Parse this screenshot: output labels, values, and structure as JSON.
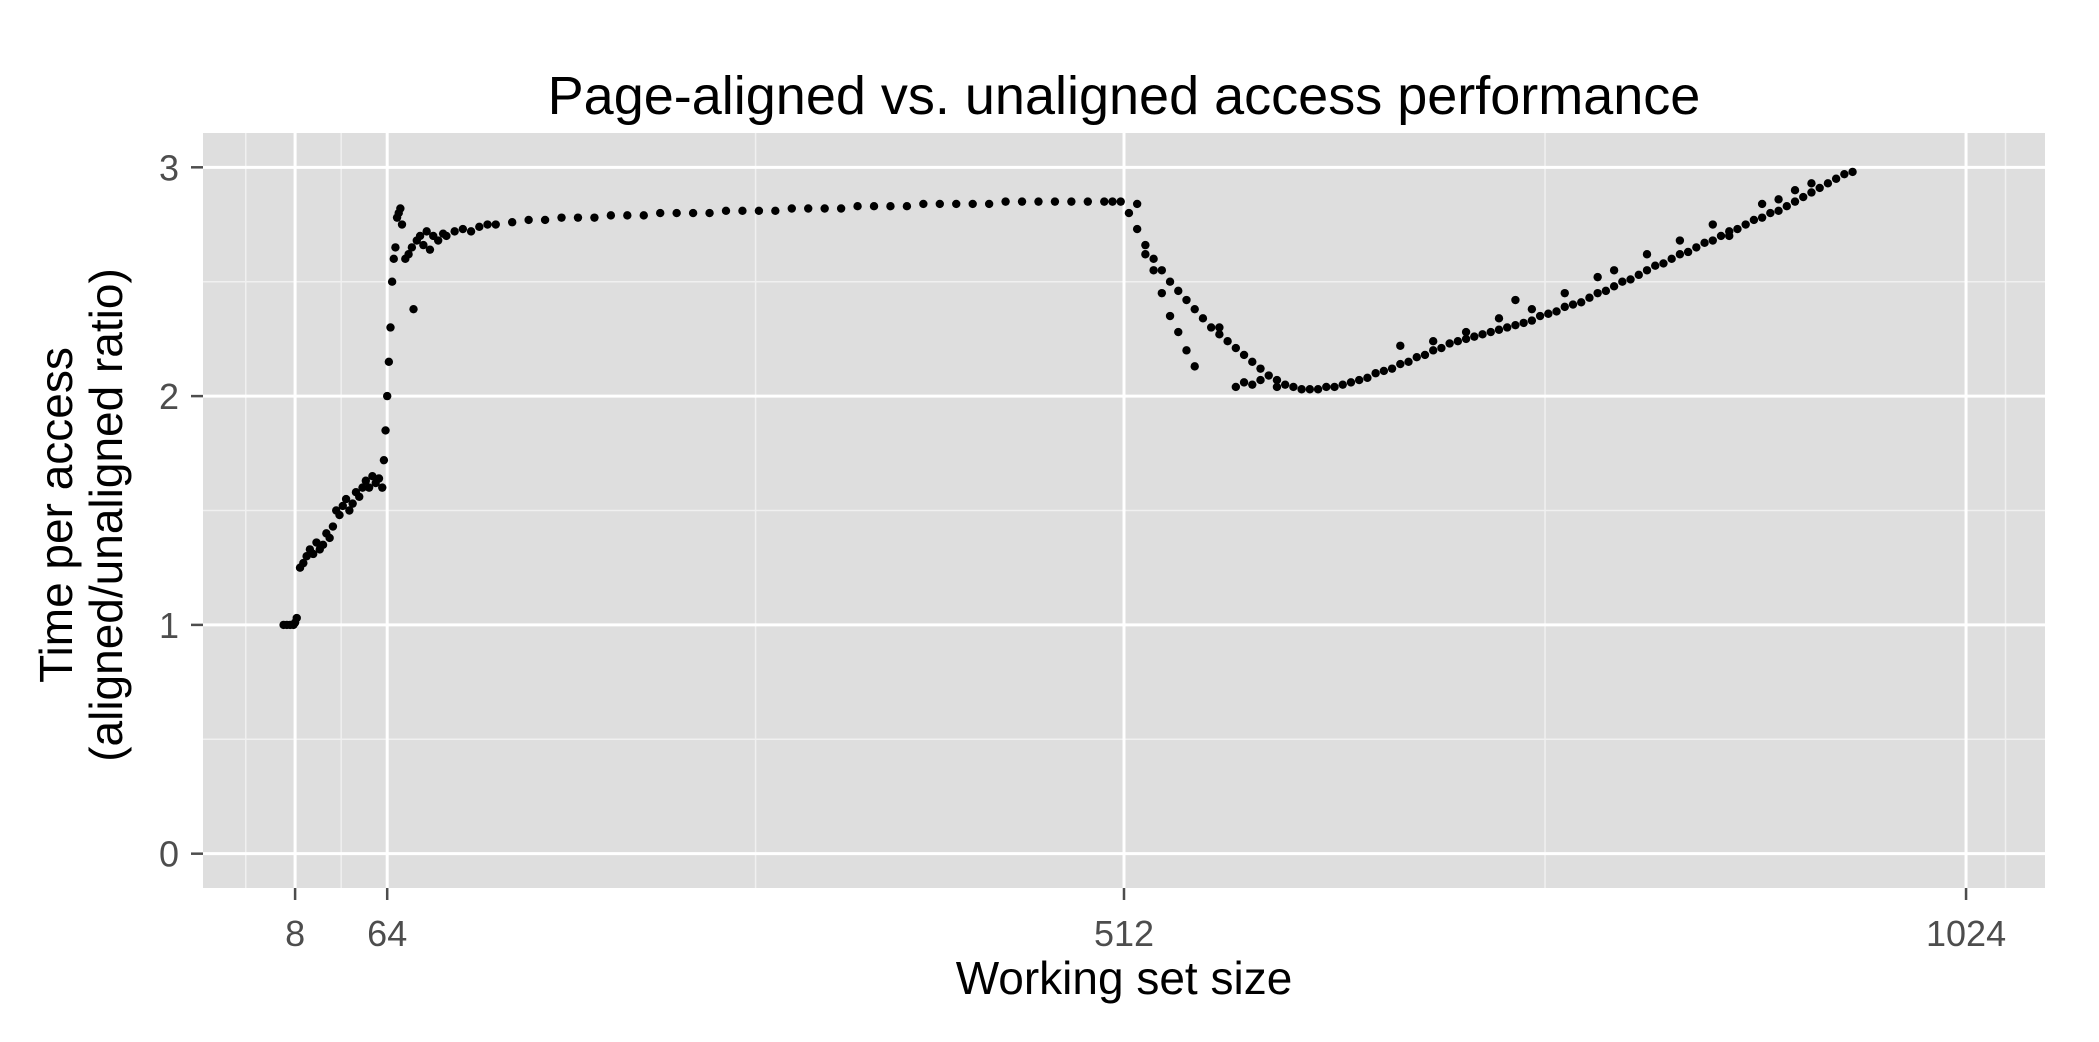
{
  "chart_data": {
    "type": "scatter",
    "title": "Page-aligned vs. unaligned access performance",
    "xlabel": "Working set size",
    "ylabel": [
      "Time per access",
      "(aligned/unaligned ratio)"
    ],
    "xlim": [
      -48,
      1072
    ],
    "ylim": [
      -0.15,
      3.15
    ],
    "x_major_ticks": [
      8,
      64,
      512,
      1024
    ],
    "x_minor_ticks": [
      -22,
      36,
      288,
      768,
      1048
    ],
    "y_major_ticks": [
      0,
      1,
      2,
      3
    ],
    "y_minor_ticks": [
      0.5,
      1.5,
      2.5
    ],
    "tick_labels": {
      "x": [
        "8",
        "64",
        "512",
        "1024"
      ],
      "y": [
        "0",
        "1",
        "2",
        "3"
      ]
    },
    "grid": true,
    "background_color": "#dedede",
    "grid_color": "#ffffff",
    "point_color": "#000000",
    "series": [
      {
        "points": [
          [
            1,
            1.0
          ],
          [
            3,
            1.0
          ],
          [
            5,
            1.0
          ],
          [
            7,
            1.0
          ],
          [
            8,
            1.01
          ],
          [
            9,
            1.03
          ],
          [
            11,
            1.25
          ],
          [
            13,
            1.27
          ],
          [
            15,
            1.3
          ],
          [
            17,
            1.33
          ],
          [
            19,
            1.31
          ],
          [
            21,
            1.36
          ],
          [
            23,
            1.33
          ],
          [
            25,
            1.35
          ],
          [
            27,
            1.4
          ],
          [
            29,
            1.38
          ],
          [
            31,
            1.43
          ],
          [
            33,
            1.5
          ],
          [
            35,
            1.48
          ],
          [
            37,
            1.52
          ],
          [
            39,
            1.55
          ],
          [
            41,
            1.5
          ],
          [
            43,
            1.53
          ],
          [
            45,
            1.58
          ],
          [
            47,
            1.56
          ],
          [
            49,
            1.6
          ],
          [
            51,
            1.63
          ],
          [
            53,
            1.6
          ],
          [
            55,
            1.65
          ],
          [
            57,
            1.62
          ],
          [
            59,
            1.64
          ],
          [
            61,
            1.6
          ],
          [
            62,
            1.72
          ],
          [
            63,
            1.85
          ],
          [
            64,
            2.0
          ],
          [
            65,
            2.15
          ],
          [
            66,
            2.3
          ],
          [
            67,
            2.5
          ],
          [
            68,
            2.6
          ],
          [
            69,
            2.65
          ],
          [
            70,
            2.78
          ],
          [
            71,
            2.8
          ],
          [
            72,
            2.82
          ],
          [
            73,
            2.75
          ],
          [
            75,
            2.6
          ],
          [
            77,
            2.62
          ],
          [
            79,
            2.65
          ],
          [
            80,
            2.38
          ],
          [
            82,
            2.68
          ],
          [
            84,
            2.7
          ],
          [
            86,
            2.66
          ],
          [
            88,
            2.72
          ],
          [
            90,
            2.64
          ],
          [
            92,
            2.7
          ],
          [
            95,
            2.68
          ],
          [
            98,
            2.71
          ],
          [
            100,
            2.7
          ],
          [
            105,
            2.72
          ],
          [
            110,
            2.73
          ],
          [
            115,
            2.72
          ],
          [
            120,
            2.74
          ],
          [
            125,
            2.75
          ],
          [
            130,
            2.75
          ],
          [
            140,
            2.76
          ],
          [
            150,
            2.77
          ],
          [
            160,
            2.77
          ],
          [
            170,
            2.78
          ],
          [
            180,
            2.78
          ],
          [
            190,
            2.78
          ],
          [
            200,
            2.79
          ],
          [
            210,
            2.79
          ],
          [
            220,
            2.79
          ],
          [
            230,
            2.8
          ],
          [
            240,
            2.8
          ],
          [
            250,
            2.8
          ],
          [
            260,
            2.8
          ],
          [
            270,
            2.81
          ],
          [
            280,
            2.81
          ],
          [
            290,
            2.81
          ],
          [
            300,
            2.81
          ],
          [
            310,
            2.82
          ],
          [
            320,
            2.82
          ],
          [
            330,
            2.82
          ],
          [
            340,
            2.82
          ],
          [
            350,
            2.83
          ],
          [
            360,
            2.83
          ],
          [
            370,
            2.83
          ],
          [
            380,
            2.83
          ],
          [
            390,
            2.84
          ],
          [
            400,
            2.84
          ],
          [
            410,
            2.84
          ],
          [
            420,
            2.84
          ],
          [
            430,
            2.84
          ],
          [
            440,
            2.85
          ],
          [
            450,
            2.85
          ],
          [
            460,
            2.85
          ],
          [
            470,
            2.85
          ],
          [
            480,
            2.85
          ],
          [
            490,
            2.85
          ],
          [
            500,
            2.85
          ],
          [
            505,
            2.85
          ],
          [
            510,
            2.85
          ],
          [
            515,
            2.8
          ],
          [
            520,
            2.73
          ],
          [
            525,
            2.66
          ],
          [
            530,
            2.6
          ],
          [
            535,
            2.55
          ],
          [
            540,
            2.5
          ],
          [
            545,
            2.46
          ],
          [
            550,
            2.42
          ],
          [
            555,
            2.38
          ],
          [
            560,
            2.34
          ],
          [
            565,
            2.3
          ],
          [
            570,
            2.27
          ],
          [
            575,
            2.24
          ],
          [
            580,
            2.21
          ],
          [
            585,
            2.18
          ],
          [
            590,
            2.15
          ],
          [
            595,
            2.12
          ],
          [
            600,
            2.09
          ],
          [
            605,
            2.07
          ],
          [
            610,
            2.05
          ],
          [
            615,
            2.04
          ],
          [
            620,
            2.03
          ],
          [
            625,
            2.03
          ],
          [
            630,
            2.03
          ],
          [
            635,
            2.04
          ],
          [
            640,
            2.04
          ],
          [
            520,
            2.84
          ],
          [
            525,
            2.62
          ],
          [
            530,
            2.55
          ],
          [
            535,
            2.45
          ],
          [
            540,
            2.35
          ],
          [
            545,
            2.28
          ],
          [
            550,
            2.2
          ],
          [
            555,
            2.13
          ],
          [
            570,
            2.3
          ],
          [
            580,
            2.04
          ],
          [
            585,
            2.06
          ],
          [
            590,
            2.05
          ],
          [
            595,
            2.07
          ],
          [
            605,
            2.04
          ],
          [
            645,
            2.05
          ],
          [
            650,
            2.06
          ],
          [
            655,
            2.07
          ],
          [
            660,
            2.08
          ],
          [
            665,
            2.1
          ],
          [
            670,
            2.11
          ],
          [
            675,
            2.12
          ],
          [
            680,
            2.14
          ],
          [
            685,
            2.15
          ],
          [
            690,
            2.17
          ],
          [
            695,
            2.18
          ],
          [
            700,
            2.2
          ],
          [
            705,
            2.21
          ],
          [
            710,
            2.23
          ],
          [
            715,
            2.24
          ],
          [
            720,
            2.25
          ],
          [
            725,
            2.26
          ],
          [
            730,
            2.27
          ],
          [
            735,
            2.28
          ],
          [
            740,
            2.29
          ],
          [
            745,
            2.3
          ],
          [
            750,
            2.31
          ],
          [
            755,
            2.32
          ],
          [
            760,
            2.33
          ],
          [
            765,
            2.35
          ],
          [
            770,
            2.36
          ],
          [
            775,
            2.37
          ],
          [
            780,
            2.39
          ],
          [
            785,
            2.4
          ],
          [
            790,
            2.41
          ],
          [
            795,
            2.43
          ],
          [
            800,
            2.45
          ],
          [
            805,
            2.46
          ],
          [
            810,
            2.48
          ],
          [
            815,
            2.5
          ],
          [
            820,
            2.51
          ],
          [
            825,
            2.53
          ],
          [
            830,
            2.55
          ],
          [
            835,
            2.57
          ],
          [
            840,
            2.58
          ],
          [
            845,
            2.6
          ],
          [
            850,
            2.62
          ],
          [
            855,
            2.63
          ],
          [
            860,
            2.65
          ],
          [
            865,
            2.67
          ],
          [
            870,
            2.68
          ],
          [
            875,
            2.7
          ],
          [
            880,
            2.72
          ],
          [
            885,
            2.73
          ],
          [
            890,
            2.75
          ],
          [
            895,
            2.77
          ],
          [
            900,
            2.78
          ],
          [
            905,
            2.8
          ],
          [
            910,
            2.81
          ],
          [
            915,
            2.83
          ],
          [
            920,
            2.85
          ],
          [
            925,
            2.87
          ],
          [
            930,
            2.89
          ],
          [
            935,
            2.91
          ],
          [
            940,
            2.93
          ],
          [
            945,
            2.95
          ],
          [
            950,
            2.97
          ],
          [
            955,
            2.98
          ],
          [
            680,
            2.22
          ],
          [
            700,
            2.24
          ],
          [
            720,
            2.28
          ],
          [
            740,
            2.34
          ],
          [
            750,
            2.42
          ],
          [
            760,
            2.38
          ],
          [
            780,
            2.45
          ],
          [
            800,
            2.52
          ],
          [
            810,
            2.55
          ],
          [
            830,
            2.62
          ],
          [
            850,
            2.68
          ],
          [
            870,
            2.75
          ],
          [
            880,
            2.7
          ],
          [
            900,
            2.84
          ],
          [
            910,
            2.86
          ],
          [
            920,
            2.9
          ],
          [
            930,
            2.93
          ]
        ]
      }
    ]
  }
}
